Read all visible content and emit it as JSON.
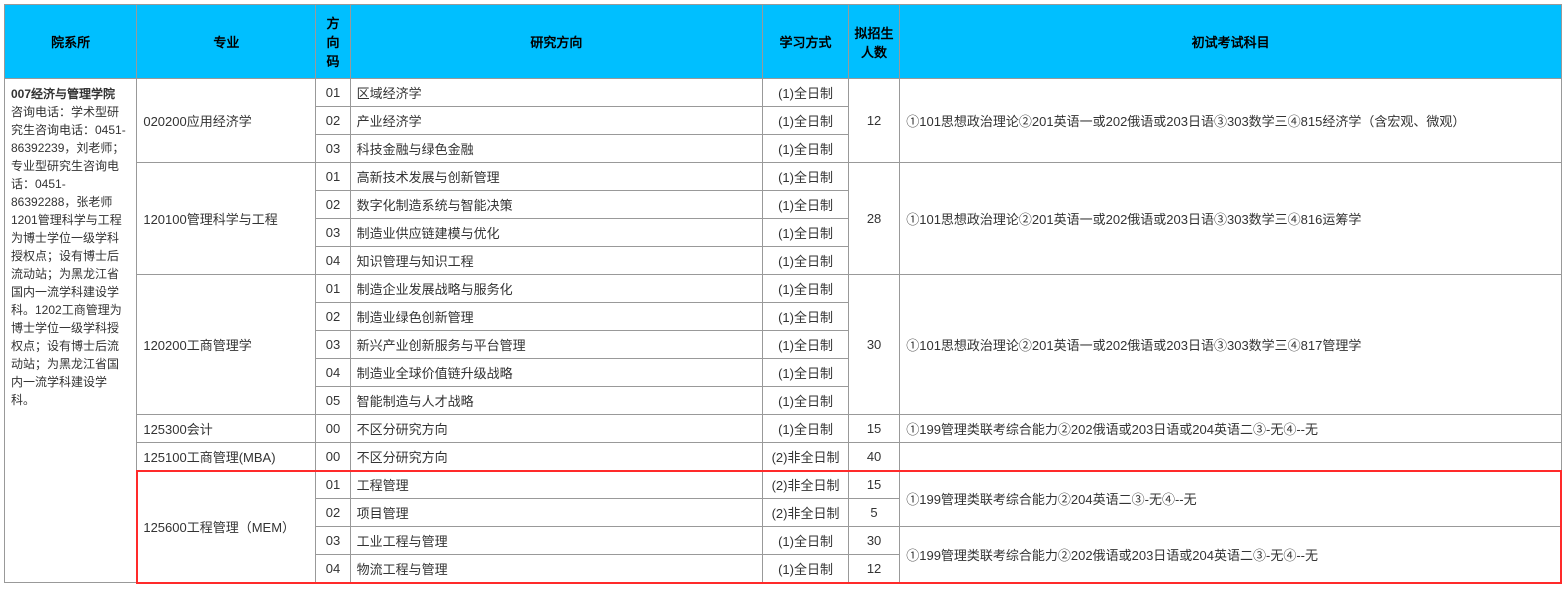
{
  "header": {
    "dept": "院系所",
    "major": "专业",
    "dircode": "方向码",
    "direction": "研究方向",
    "mode": "学习方式",
    "enroll": "拟招生人数",
    "exam": "初试考试科目"
  },
  "colwidths": {
    "dept": "8.5%",
    "major": "11.5%",
    "dircode": "2.2%",
    "direction": "26.5%",
    "mode": "5.5%",
    "enroll": "3.3%",
    "exam": "42.5%"
  },
  "dept": {
    "title": "007经济与管理学院",
    "note": "咨询电话：学术型研究生咨询电话：0451-86392239，刘老师；专业型研究生咨询电话：0451-86392288，张老师 1201管理科学与工程为博士学位一级学科授权点；设有博士后流动站；为黑龙江省国内一流学科建设学科。1202工商管理为博士学位一级学科授权点；设有博士后流动站；为黑龙江省国内一流学科建设学科。"
  },
  "majors": {
    "m1": "020200应用经济学",
    "m2": "120100管理科学与工程",
    "m3": "120200工商管理学",
    "m4": "125300会计",
    "m5": "125100工商管理(MBA)",
    "m6": "125600工程管理（MEM）"
  },
  "rows": {
    "r1": {
      "code": "01",
      "dir": "区域经济学",
      "mode": "(1)全日制"
    },
    "r2": {
      "code": "02",
      "dir": "产业经济学",
      "mode": "(1)全日制"
    },
    "r3": {
      "code": "03",
      "dir": "科技金融与绿色金融",
      "mode": "(1)全日制"
    },
    "r4": {
      "code": "01",
      "dir": "高新技术发展与创新管理",
      "mode": "(1)全日制"
    },
    "r5": {
      "code": "02",
      "dir": "数字化制造系统与智能决策",
      "mode": "(1)全日制"
    },
    "r6": {
      "code": "03",
      "dir": "制造业供应链建模与优化",
      "mode": "(1)全日制"
    },
    "r7": {
      "code": "04",
      "dir": "知识管理与知识工程",
      "mode": "(1)全日制"
    },
    "r8": {
      "code": "01",
      "dir": "制造企业发展战略与服务化",
      "mode": "(1)全日制"
    },
    "r9": {
      "code": "02",
      "dir": "制造业绿色创新管理",
      "mode": "(1)全日制"
    },
    "r10": {
      "code": "03",
      "dir": "新兴产业创新服务与平台管理",
      "mode": "(1)全日制"
    },
    "r11": {
      "code": "04",
      "dir": "制造业全球价值链升级战略",
      "mode": "(1)全日制"
    },
    "r12": {
      "code": "05",
      "dir": "智能制造与人才战略",
      "mode": "(1)全日制"
    },
    "r13": {
      "code": "00",
      "dir": "不区分研究方向",
      "mode": "(1)全日制"
    },
    "r14": {
      "code": "00",
      "dir": "不区分研究方向",
      "mode": "(2)非全日制"
    },
    "r15": {
      "code": "01",
      "dir": "工程管理",
      "mode": "(2)非全日制"
    },
    "r16": {
      "code": "02",
      "dir": "项目管理",
      "mode": "(2)非全日制"
    },
    "r17": {
      "code": "03",
      "dir": "工业工程与管理",
      "mode": "(1)全日制"
    },
    "r18": {
      "code": "04",
      "dir": "物流工程与管理",
      "mode": "(1)全日制"
    }
  },
  "enroll": {
    "e1": "12",
    "e2": "28",
    "e3": "30",
    "e4": "15",
    "e5": "40",
    "e6": "15",
    "e7": "5",
    "e8": "30",
    "e9": "12"
  },
  "exam": {
    "x1": "①101思想政治理论②201英语一或202俄语或203日语③303数学三④815经济学（含宏观、微观）",
    "x2": "①101思想政治理论②201英语一或202俄语或203日语③303数学三④816运筹学",
    "x3": "①101思想政治理论②201英语一或202俄语或203日语③303数学三④817管理学",
    "x4": "①199管理类联考综合能力②202俄语或203日语或204英语二③-无④--无",
    "x5": "①199管理类联考综合能力②204英语二③-无④--无",
    "x6": "①199管理类联考综合能力②202俄语或203日语或204英语二③-无④--无"
  },
  "highlight": {
    "border_color": "#ff2a2a"
  }
}
